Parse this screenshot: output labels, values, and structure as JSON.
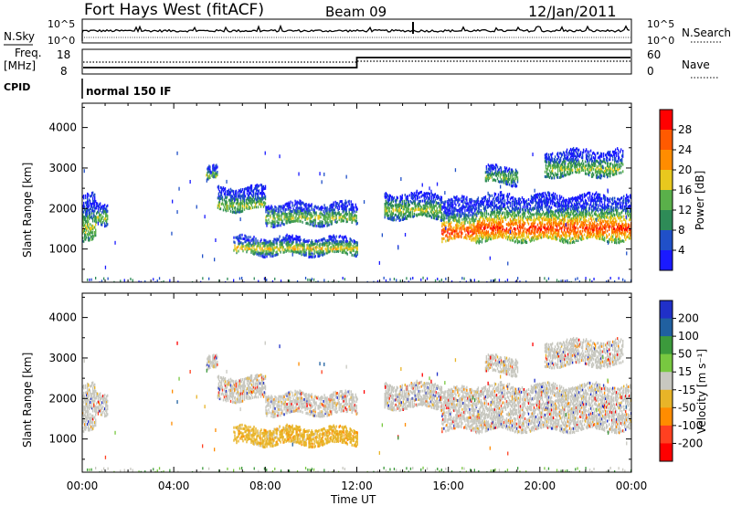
{
  "header": {
    "station": "Fort Hays West (fitACF)",
    "beam": "Beam 09",
    "date": "12/Jan/2011"
  },
  "labels": {
    "nsky": "N.Sky",
    "nsearch": "N.Search",
    "freq_a": "Freq.",
    "freq_b": "[MHz]",
    "nave": "Nave",
    "cpid": "CPID",
    "cpid_value": "normal 150 IF",
    "xlabel": "Time UT",
    "nsky_ticks": [
      "10^5",
      "10^0"
    ],
    "nsearch_ticks": [
      "10^5",
      "10^0"
    ],
    "freq_ticks": [
      "18",
      "8"
    ],
    "nave_ticks": [
      "60",
      "0"
    ]
  },
  "colors": {
    "power": [
      "#1a1aff",
      "#2050c8",
      "#2e8b57",
      "#5ab04a",
      "#e8c81e",
      "#ff8c00",
      "#ff5a00",
      "#ff0000"
    ],
    "velocity": [
      "#2030c8",
      "#2060a0",
      "#3c9a3c",
      "#78c840",
      "#c8c8c0",
      "#e8b428",
      "#ff8c00",
      "#ff4020",
      "#ff0000"
    ]
  },
  "chart_data": [
    {
      "type": "heatmap",
      "panel": "power",
      "ylabel": "Slant Range [km]",
      "xlabel": "",
      "x_ticks": [
        "00:00",
        "04:00",
        "08:00",
        "12:00",
        "16:00",
        "20:00",
        "00:00"
      ],
      "y_ticks": [
        1000,
        2000,
        3000,
        4000
      ],
      "xlim": [
        0,
        24
      ],
      "ylim": [
        180,
        4600
      ],
      "colorbar_label": "Power [dB]",
      "colorbar_ticks": [
        "28",
        "24",
        "20",
        "16",
        "12",
        "8",
        "4"
      ],
      "scatter_bands": [
        {
          "t0": 0.0,
          "t1": 0.6,
          "r0": 1150,
          "r1": 2300,
          "core": 1550
        },
        {
          "t0": 0.6,
          "t1": 1.1,
          "r0": 1600,
          "r1": 2100,
          "core": 1800
        },
        {
          "t0": 5.4,
          "t1": 5.9,
          "r0": 2700,
          "r1": 3000,
          "core": 2850
        },
        {
          "t0": 5.9,
          "t1": 8.0,
          "r0": 1950,
          "r1": 2500,
          "core": 2100
        },
        {
          "t0": 8.0,
          "t1": 12.0,
          "r0": 1600,
          "r1": 2100,
          "core": 1800
        },
        {
          "t0": 6.6,
          "t1": 12.0,
          "r0": 850,
          "r1": 1250,
          "core": 1050
        },
        {
          "t0": 13.2,
          "t1": 15.7,
          "r0": 1750,
          "r1": 2350,
          "core": 2000
        },
        {
          "t0": 15.7,
          "t1": 17.2,
          "r0": 1200,
          "r1": 2200,
          "core": 1450
        },
        {
          "t0": 17.2,
          "t1": 24.0,
          "r0": 1200,
          "r1": 2300,
          "core": 1550
        },
        {
          "t0": 17.6,
          "t1": 19.0,
          "r0": 2600,
          "r1": 3000,
          "core": 2800
        },
        {
          "t0": 20.2,
          "t1": 23.6,
          "r0": 2800,
          "r1": 3400,
          "core": 3000
        }
      ]
    },
    {
      "type": "heatmap",
      "panel": "velocity",
      "ylabel": "Slant Range [km]",
      "xlabel": "Time UT",
      "x_ticks": [
        "00:00",
        "04:00",
        "08:00",
        "12:00",
        "16:00",
        "20:00",
        "00:00"
      ],
      "y_ticks": [
        1000,
        2000,
        3000,
        4000
      ],
      "xlim": [
        0,
        24
      ],
      "ylim": [
        180,
        4600
      ],
      "colorbar_label": "Velocity [m s⁻¹]",
      "colorbar_ticks": [
        "200",
        "100",
        "50",
        "15",
        "-15",
        "-50",
        "-100",
        "-200"
      ],
      "dominant_values": {
        "main_scatter": "-15 to 15",
        "low_band_07_12UT": "-15 to -50"
      }
    }
  ]
}
